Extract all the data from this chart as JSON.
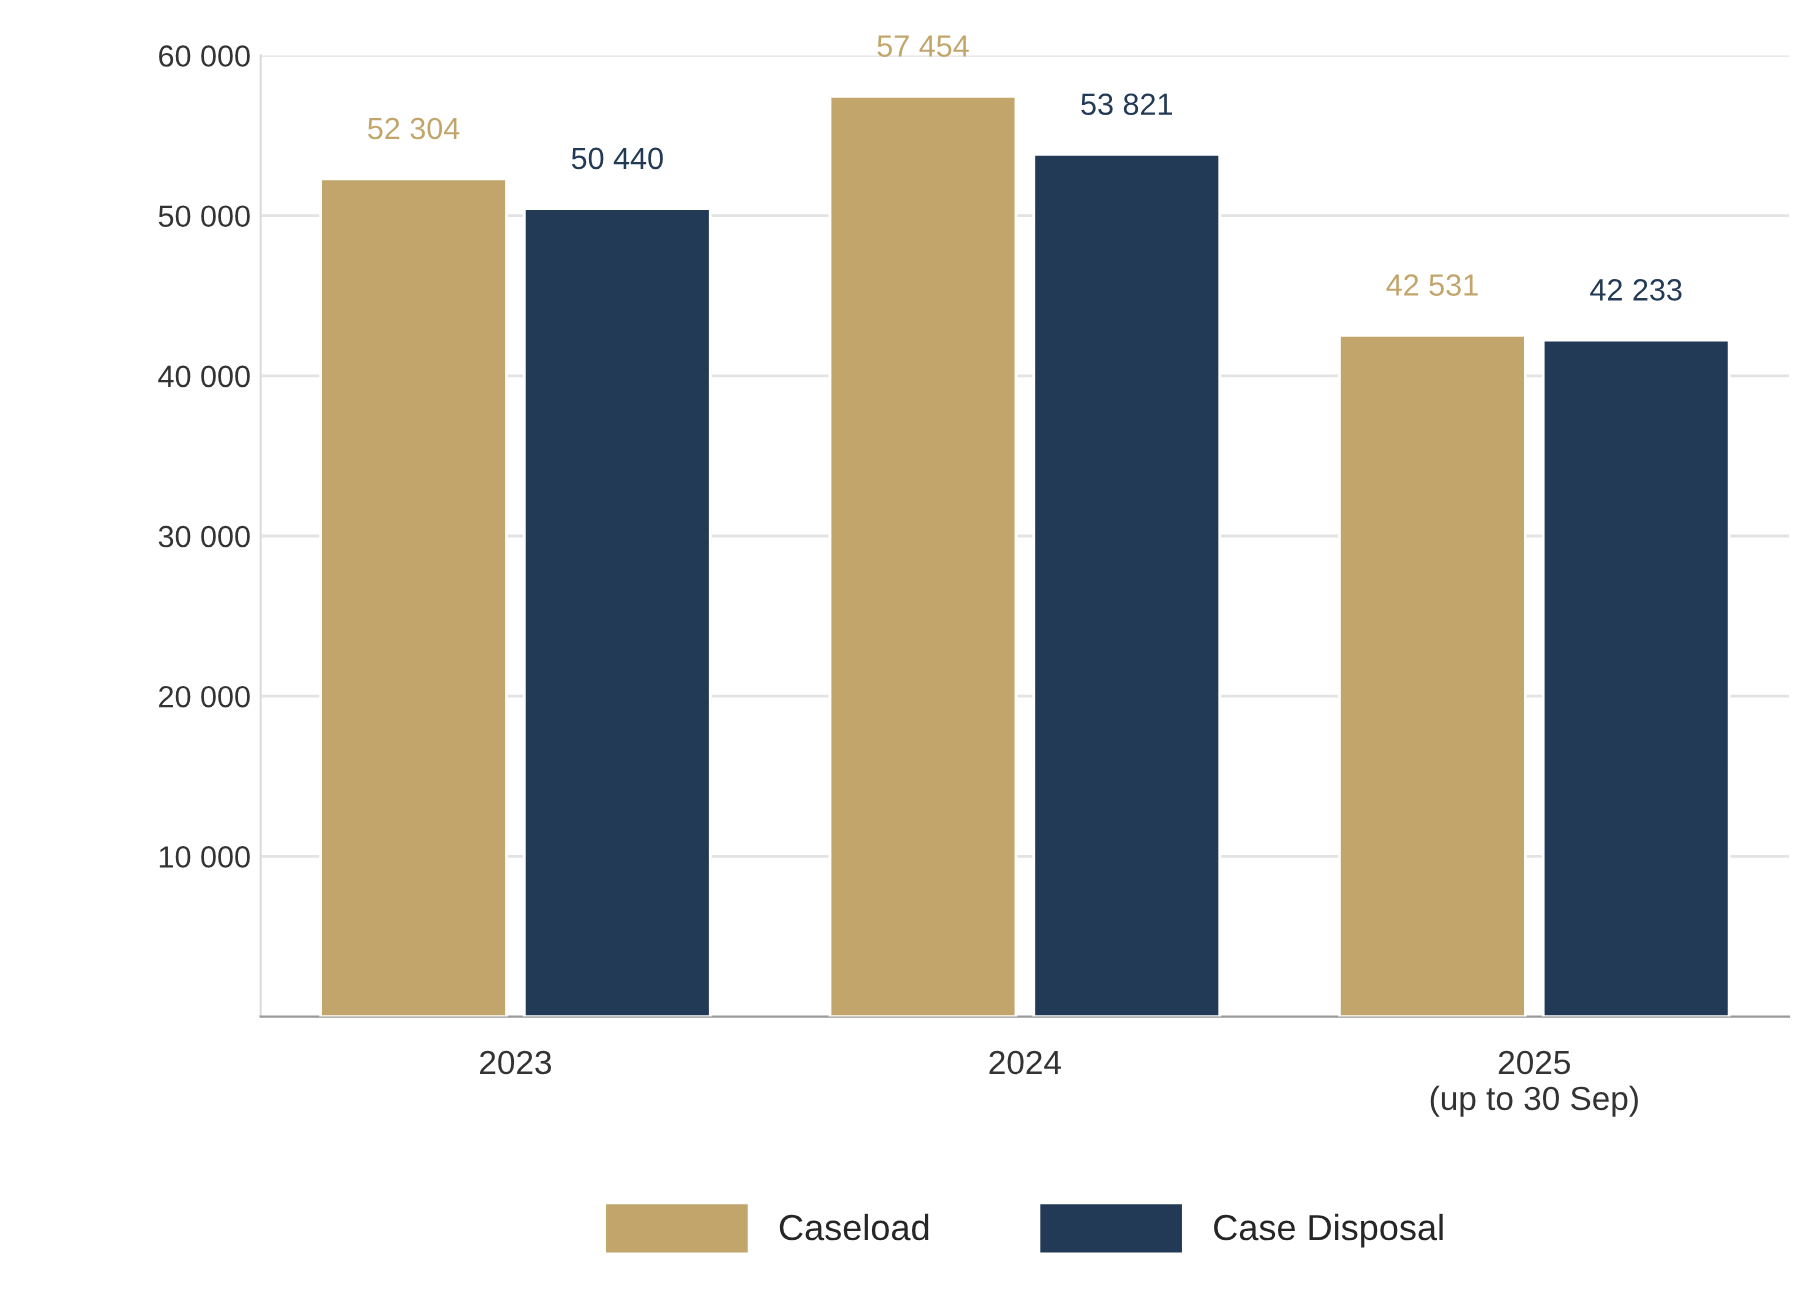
{
  "chart_data": {
    "type": "bar",
    "categories": [
      "2023",
      "2024",
      "2025\n(up to 30 Sep)"
    ],
    "series": [
      {
        "name": "Caseload",
        "color": "#c1a56b",
        "values": [
          52304,
          57454,
          42531
        ],
        "value_labels": [
          "52 304",
          "57 454",
          "42 531"
        ]
      },
      {
        "name": "Case Disposal",
        "color": "#233a56",
        "values": [
          50440,
          53821,
          42233
        ],
        "value_labels": [
          "50 440",
          "53 821",
          "42 233"
        ]
      }
    ],
    "ylim": [
      0,
      60000
    ],
    "yticks": [
      {
        "value": 10000,
        "label": "10 000"
      },
      {
        "value": 20000,
        "label": "20 000"
      },
      {
        "value": 30000,
        "label": "30 000"
      },
      {
        "value": 40000,
        "label": "40 000"
      },
      {
        "value": 50000,
        "label": "50 000"
      },
      {
        "value": 60000,
        "label": "60 000"
      }
    ],
    "grid": "y",
    "legend": "bottom"
  }
}
